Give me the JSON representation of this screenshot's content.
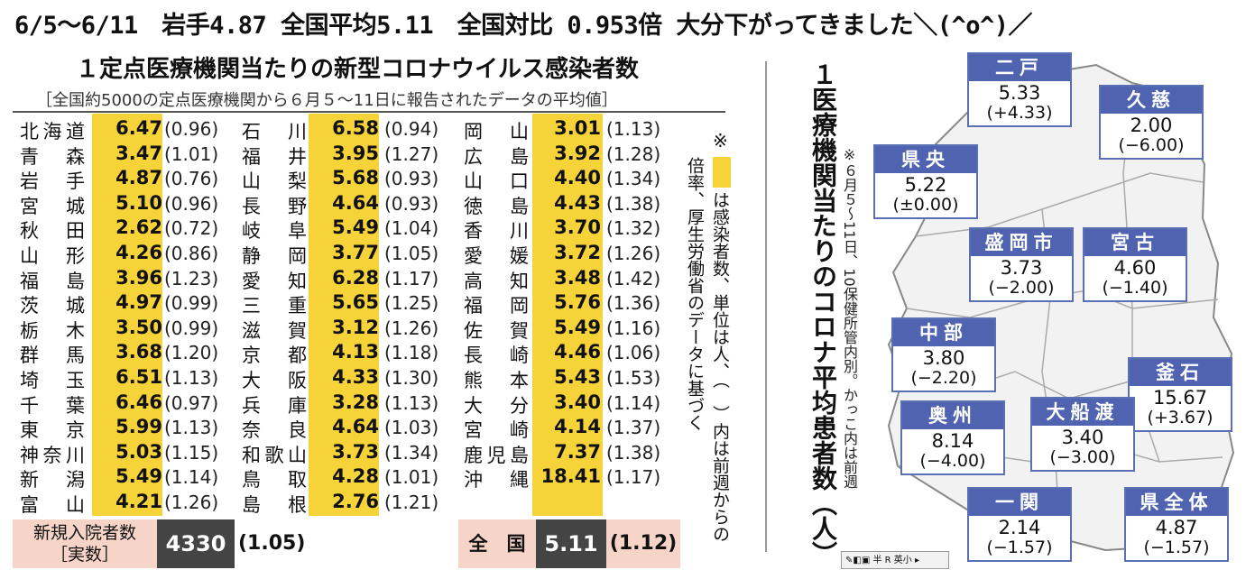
{
  "headline": "6/5～6/11　岩手4.87 全国平均5.11　全国対比 0.953倍 大分下がってきました＼(^o^)／",
  "table": {
    "title": "１定点医療機関当たりの新型コロナウイルス感染者数",
    "subtitle": "［全国約5000の定点医療機関から６月５～11日に報告されたデータの平均値］",
    "columns": [
      [
        {
          "pref": "北海道",
          "val": "6.47",
          "chg": "(0.96)"
        },
        {
          "pref": "青森",
          "val": "3.47",
          "chg": "(1.01)"
        },
        {
          "pref": "岩手",
          "val": "4.87",
          "chg": "(0.76)"
        },
        {
          "pref": "宮城",
          "val": "5.10",
          "chg": "(0.96)"
        },
        {
          "pref": "秋田",
          "val": "2.62",
          "chg": "(0.72)"
        },
        {
          "pref": "山形",
          "val": "4.26",
          "chg": "(0.86)"
        },
        {
          "pref": "福島",
          "val": "3.96",
          "chg": "(1.23)"
        },
        {
          "pref": "茨城",
          "val": "4.97",
          "chg": "(0.99)"
        },
        {
          "pref": "栃木",
          "val": "3.50",
          "chg": "(0.99)"
        },
        {
          "pref": "群馬",
          "val": "3.68",
          "chg": "(1.20)"
        },
        {
          "pref": "埼玉",
          "val": "6.51",
          "chg": "(1.13)"
        },
        {
          "pref": "千葉",
          "val": "6.46",
          "chg": "(0.97)"
        },
        {
          "pref": "東京",
          "val": "5.99",
          "chg": "(1.13)"
        },
        {
          "pref": "神奈川",
          "val": "5.03",
          "chg": "(1.15)"
        },
        {
          "pref": "新潟",
          "val": "5.49",
          "chg": "(1.14)"
        },
        {
          "pref": "富山",
          "val": "4.21",
          "chg": "(1.26)"
        }
      ],
      [
        {
          "pref": "石川",
          "val": "6.58",
          "chg": "(0.94)"
        },
        {
          "pref": "福井",
          "val": "3.95",
          "chg": "(1.27)"
        },
        {
          "pref": "山梨",
          "val": "5.68",
          "chg": "(0.93)"
        },
        {
          "pref": "長野",
          "val": "4.64",
          "chg": "(0.93)"
        },
        {
          "pref": "岐阜",
          "val": "5.49",
          "chg": "(1.04)"
        },
        {
          "pref": "静岡",
          "val": "3.77",
          "chg": "(1.05)"
        },
        {
          "pref": "愛知",
          "val": "6.28",
          "chg": "(1.17)"
        },
        {
          "pref": "三重",
          "val": "5.65",
          "chg": "(1.25)"
        },
        {
          "pref": "滋賀",
          "val": "3.12",
          "chg": "(1.26)"
        },
        {
          "pref": "京都",
          "val": "4.13",
          "chg": "(1.18)"
        },
        {
          "pref": "大阪",
          "val": "4.33",
          "chg": "(1.30)"
        },
        {
          "pref": "兵庫",
          "val": "3.28",
          "chg": "(1.13)"
        },
        {
          "pref": "奈良",
          "val": "4.64",
          "chg": "(1.03)"
        },
        {
          "pref": "和歌山",
          "val": "3.73",
          "chg": "(1.34)"
        },
        {
          "pref": "鳥取",
          "val": "4.28",
          "chg": "(1.01)"
        },
        {
          "pref": "島根",
          "val": "2.76",
          "chg": "(1.21)"
        }
      ],
      [
        {
          "pref": "岡山",
          "val": "3.01",
          "chg": "(1.13)"
        },
        {
          "pref": "広島",
          "val": "3.92",
          "chg": "(1.28)"
        },
        {
          "pref": "山口",
          "val": "4.40",
          "chg": "(1.34)"
        },
        {
          "pref": "徳島",
          "val": "4.43",
          "chg": "(1.38)"
        },
        {
          "pref": "香川",
          "val": "3.70",
          "chg": "(1.32)"
        },
        {
          "pref": "愛媛",
          "val": "3.72",
          "chg": "(1.26)"
        },
        {
          "pref": "高知",
          "val": "3.48",
          "chg": "(1.42)"
        },
        {
          "pref": "福岡",
          "val": "5.76",
          "chg": "(1.36)"
        },
        {
          "pref": "佐賀",
          "val": "5.49",
          "chg": "(1.16)"
        },
        {
          "pref": "長崎",
          "val": "4.46",
          "chg": "(1.06)"
        },
        {
          "pref": "熊本",
          "val": "5.43",
          "chg": "(1.53)"
        },
        {
          "pref": "大分",
          "val": "3.40",
          "chg": "(1.14)"
        },
        {
          "pref": "宮崎",
          "val": "4.14",
          "chg": "(1.37)"
        },
        {
          "pref": "鹿児島",
          "val": "7.37",
          "chg": "(1.38)"
        },
        {
          "pref": "沖縄",
          "val": "18.41",
          "chg": "(1.17)"
        }
      ]
    ],
    "note_mark": "※",
    "note_text_a": "は感染者数、単位は人、（　）内は前週からの",
    "note_text_b": "倍率、厚生労働省のデータに基づく",
    "admissions_label_1": "新規入院者数",
    "admissions_label_2": "［実数］",
    "admissions_value": "4330",
    "admissions_chg": "(1.05)",
    "national_label": "全　国",
    "national_value": "5.11",
    "national_chg": "(1.12)"
  },
  "map": {
    "title": "１医療機関当たりのコロナ平均患者数（人）",
    "note": "※６月５～11日、10保健所管内別。かっこ内は前週",
    "regions": [
      {
        "name": "二戸",
        "val": "5.33",
        "chg": "(+4.33)"
      },
      {
        "name": "久慈",
        "val": "2.00",
        "chg": "(−6.00)"
      },
      {
        "name": "県央",
        "val": "5.22",
        "chg": "(±0.00)"
      },
      {
        "name": "盛岡市",
        "val": "3.73",
        "chg": "(−2.00)"
      },
      {
        "name": "宮古",
        "val": "4.60",
        "chg": "(−1.40)"
      },
      {
        "name": "中部",
        "val": "3.80",
        "chg": "(−2.20)"
      },
      {
        "name": "釜石",
        "val": "15.67",
        "chg": "(+3.67)"
      },
      {
        "name": "奥州",
        "val": "8.14",
        "chg": "(−4.00)"
      },
      {
        "name": "大船渡",
        "val": "3.40",
        "chg": "(−3.00)"
      },
      {
        "name": "一関",
        "val": "2.14",
        "chg": "(−1.57)"
      },
      {
        "name": "県全体",
        "val": "4.87",
        "chg": "(−1.57)"
      }
    ]
  },
  "ime_bar": "半 R 英小"
}
